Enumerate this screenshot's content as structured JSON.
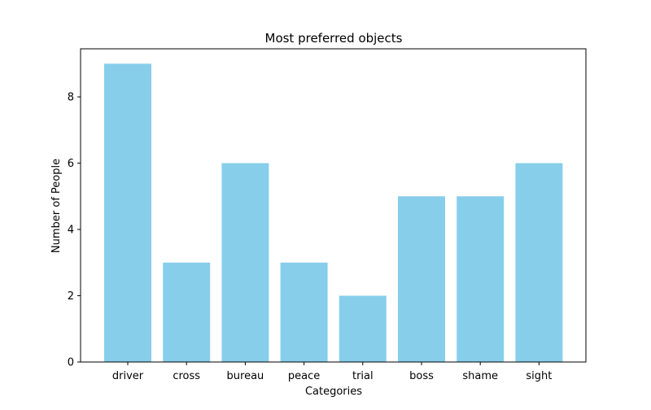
{
  "chart_data": {
    "type": "bar",
    "title": "Most preferred objects",
    "xlabel": "Categories",
    "ylabel": "Number of People",
    "categories": [
      "driver",
      "cross",
      "bureau",
      "peace",
      "trial",
      "boss",
      "shame",
      "sight"
    ],
    "values": [
      9,
      3,
      6,
      3,
      2,
      5,
      5,
      6
    ],
    "ylim": [
      0,
      9.45
    ],
    "yticks": [
      0,
      2,
      4,
      6,
      8
    ],
    "grid": false,
    "legend": null,
    "bar_color": "#87CEEB"
  }
}
